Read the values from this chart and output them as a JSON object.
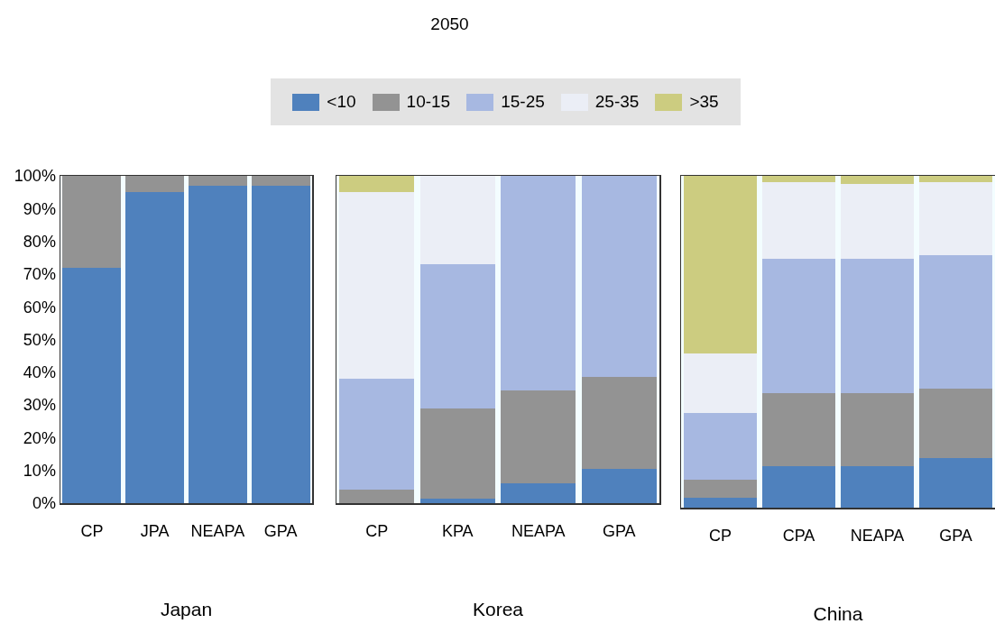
{
  "chart_data": [
    {
      "type": "bar",
      "xlabel": "Japan",
      "stacked": true,
      "categories": [
        "CP",
        "JPA",
        "NEAPA",
        "GPA"
      ],
      "ylim": [
        0,
        100
      ],
      "yticks": [
        {
          "value": 0,
          "label": "0%"
        },
        {
          "value": 10,
          "label": "10%"
        },
        {
          "value": 20,
          "label": "20%"
        },
        {
          "value": 30,
          "label": "30%"
        },
        {
          "value": 40,
          "label": "40%"
        },
        {
          "value": 50,
          "label": "50%"
        },
        {
          "value": 60,
          "label": "60%"
        },
        {
          "value": 70,
          "label": "70%"
        },
        {
          "value": 80,
          "label": "80%"
        },
        {
          "value": 90,
          "label": "90%"
        },
        {
          "value": 100,
          "label": "100%"
        }
      ],
      "grid": false,
      "legend": "top",
      "series": [
        {
          "name": "<10",
          "color": "#4f81bd",
          "values": [
            72,
            95,
            97,
            97
          ]
        },
        {
          "name": "10-15",
          "color": "#939393",
          "values": [
            28,
            5,
            3,
            3
          ]
        }
      ]
    },
    {
      "type": "bar",
      "title": "2050",
      "xlabel": "Korea",
      "stacked": true,
      "categories": [
        "CP",
        "KPA",
        "NEAPA",
        "GPA"
      ],
      "ylim": [
        0,
        100
      ],
      "tick_labels": "x",
      "grid": false,
      "legend": "top",
      "series": [
        {
          "name": "<10",
          "color": "#4f81bd",
          "values": [
            0,
            1.5,
            6,
            10.5
          ]
        },
        {
          "name": "10-15",
          "color": "#939393",
          "values": [
            4,
            27.5,
            28.5,
            28
          ]
        },
        {
          "name": "15-25",
          "color": "#a7b8e1",
          "values": [
            34,
            44,
            65.5,
            61.5
          ]
        },
        {
          "name": "25-35",
          "color": "#ebeef6",
          "values": [
            57,
            27,
            0,
            0
          ]
        },
        {
          "name": ">35",
          "color": "#cccc80",
          "values": [
            5,
            0,
            0,
            0
          ]
        }
      ]
    },
    {
      "type": "bar",
      "xlabel": "China",
      "stacked": true,
      "categories": [
        "CP",
        "CPA",
        "NEAPA",
        "GPA"
      ],
      "ylim": [
        0,
        100
      ],
      "tick_labels": "x",
      "grid": false,
      "legend": "top",
      "series": [
        {
          "name": "<10",
          "color": "#4f81bd",
          "values": [
            3,
            12.5,
            12.5,
            15
          ]
        },
        {
          "name": "10-15",
          "color": "#939393",
          "values": [
            5.5,
            22,
            22,
            21
          ]
        },
        {
          "name": "15-25",
          "color": "#a7b8e1",
          "values": [
            20,
            40.5,
            40.5,
            40
          ]
        },
        {
          "name": "25-35",
          "color": "#ebeef6",
          "values": [
            18,
            23,
            22.5,
            22
          ]
        },
        {
          "name": ">35",
          "color": "#cccc80",
          "values": [
            53.5,
            2,
            2.5,
            2
          ]
        }
      ]
    }
  ]
}
